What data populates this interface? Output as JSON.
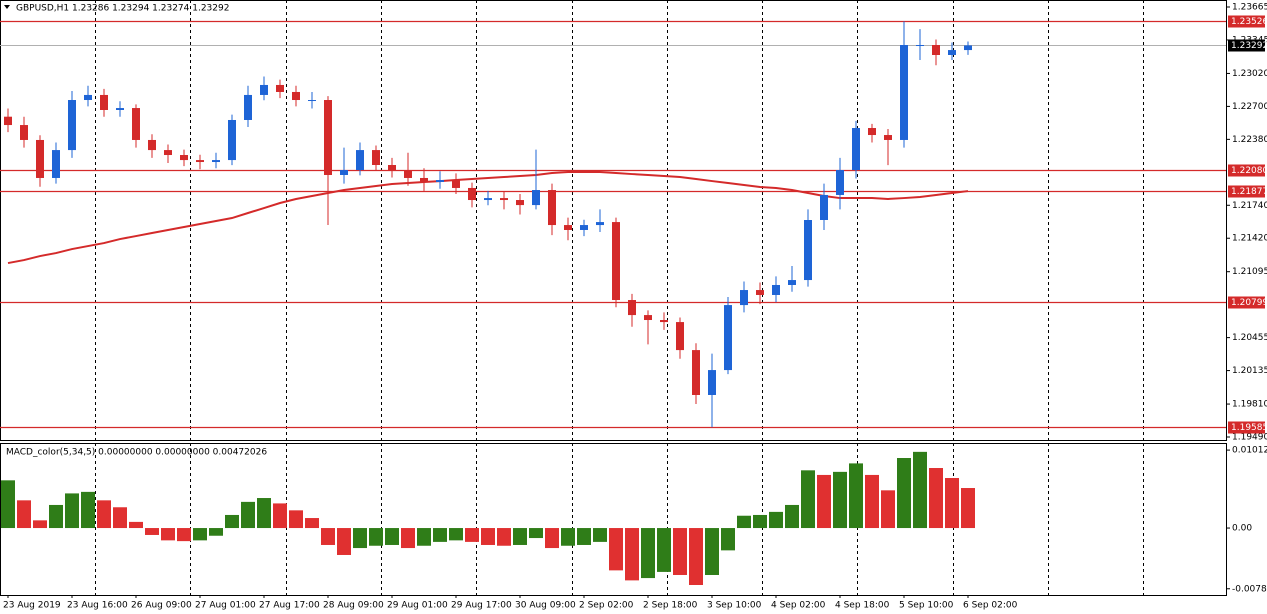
{
  "chart_data": {
    "type": "candlestick",
    "symbol": "GBPUSD,H1",
    "quote": "1.23286 1.23294 1.23274 1.23292",
    "categories": [
      "23 Aug 2019",
      null,
      null,
      null,
      "23 Aug 16:00",
      null,
      null,
      null,
      "26 Aug 09:00",
      null,
      null,
      null,
      "27 Aug 01:00",
      null,
      null,
      null,
      "27 Aug 17:00",
      null,
      null,
      null,
      "28 Aug 09:00",
      null,
      null,
      null,
      "29 Aug 01:00",
      null,
      null,
      null,
      "29 Aug 17:00",
      null,
      null,
      null,
      "30 Aug 09:00",
      null,
      null,
      null,
      "2 Sep 02:00",
      null,
      null,
      null,
      "2 Sep 18:00",
      null,
      null,
      null,
      "3 Sep 10:00",
      null,
      null,
      null,
      "4 Sep 02:00",
      null,
      null,
      null,
      "4 Sep 18:00",
      null,
      null,
      null,
      "5 Sep 10:00",
      null,
      null,
      null,
      "6 Sep 02:00"
    ],
    "open": [
      1.226,
      1.22519,
      1.22374,
      1.22005,
      1.22276,
      1.22762,
      1.22811,
      1.22665,
      1.22684,
      1.22374,
      1.22276,
      1.22228,
      1.22179,
      1.2216,
      1.22179,
      1.22568,
      1.22811,
      1.22908,
      1.2284,
      1.22762,
      1.22762,
      1.22034,
      1.22082,
      1.22276,
      1.22131,
      1.22082,
      1.22005,
      1.21966,
      1.21985,
      1.21908,
      1.21791,
      1.2181,
      1.21791,
      1.21742,
      1.21888,
      1.21548,
      1.215,
      1.21548,
      1.21577,
      1.2082,
      1.20674,
      1.20626,
      1.20606,
      1.20334,
      1.19898,
      1.2014,
      1.20771,
      1.20917,
      1.20869,
      1.20966,
      1.21014,
      1.21597,
      1.2184,
      1.22082,
      1.2249,
      1.22422,
      1.22374,
      1.23296,
      1.23296,
      1.23199,
      1.23247
    ],
    "high": [
      1.2268,
      1.226,
      1.2242,
      1.2235,
      1.2285,
      1.229,
      1.2287,
      1.2275,
      1.2272,
      1.2243,
      1.2233,
      1.2228,
      1.2223,
      1.2225,
      1.2262,
      1.229,
      1.2299,
      1.2296,
      1.229,
      1.2284,
      1.228,
      1.223,
      1.2235,
      1.2232,
      1.222,
      1.2225,
      1.221,
      1.2207,
      1.2205,
      1.2196,
      1.2188,
      1.2187,
      1.2185,
      1.2228,
      1.2195,
      1.2162,
      1.216,
      1.217,
      1.2162,
      1.2088,
      1.2072,
      1.207,
      1.2065,
      1.204,
      1.203,
      1.2085,
      1.21,
      1.2099,
      1.2105,
      1.2115,
      1.217,
      1.2195,
      1.222,
      1.2256,
      1.2253,
      1.2248,
      1.23526,
      1.2345,
      1.2335,
      1.2332,
      1.2333
    ],
    "low": [
      1.2245,
      1.223,
      1.2192,
      1.2195,
      1.222,
      1.227,
      1.226,
      1.226,
      1.223,
      1.222,
      1.2215,
      1.2212,
      1.2209,
      1.221,
      1.2213,
      1.225,
      1.2276,
      1.2278,
      1.227,
      1.2268,
      1.21548,
      1.2195,
      1.2203,
      1.2208,
      1.2201,
      1.2193,
      1.2188,
      1.219,
      1.2185,
      1.2172,
      1.2174,
      1.217,
      1.2165,
      1.217,
      1.2145,
      1.214,
      1.2144,
      1.2148,
      1.2075,
      1.2056,
      1.2039,
      1.2053,
      1.2025,
      1.1981,
      1.19585,
      1.201,
      1.207,
      1.2078,
      1.208,
      1.209,
      1.2095,
      1.215,
      1.217,
      1.22,
      1.2235,
      1.2213,
      1.223,
      1.2315,
      1.231,
      1.2315,
      1.232
    ],
    "close": [
      1.22519,
      1.22374,
      1.22005,
      1.22276,
      1.22762,
      1.22811,
      1.22665,
      1.22684,
      1.22374,
      1.22276,
      1.22228,
      1.22179,
      1.2216,
      1.22179,
      1.22568,
      1.22811,
      1.22908,
      1.2284,
      1.22762,
      1.22762,
      1.22034,
      1.22082,
      1.22276,
      1.22131,
      1.22082,
      1.22005,
      1.21966,
      1.21985,
      1.21908,
      1.21791,
      1.2181,
      1.21791,
      1.21742,
      1.21888,
      1.21548,
      1.215,
      1.21548,
      1.21577,
      1.2082,
      1.20674,
      1.20626,
      1.20606,
      1.20334,
      1.19898,
      1.2014,
      1.20771,
      1.20917,
      1.20869,
      1.20966,
      1.21014,
      1.21597,
      1.2184,
      1.22082,
      1.2249,
      1.22422,
      1.22374,
      1.23296,
      1.23296,
      1.23199,
      1.23247,
      1.23292
    ],
    "up_color": "#1e64d6",
    "down_color": "#d42a2a",
    "ma": {
      "color": "#d42a2a",
      "values": [
        1.21179,
        1.21208,
        1.21247,
        1.21276,
        1.21315,
        1.21344,
        1.21373,
        1.21412,
        1.21441,
        1.21471,
        1.215,
        1.21529,
        1.21558,
        1.21587,
        1.21616,
        1.21665,
        1.21713,
        1.21762,
        1.21801,
        1.2183,
        1.21859,
        1.21888,
        1.21908,
        1.21927,
        1.21946,
        1.21956,
        1.21966,
        1.21975,
        1.21985,
        1.21995,
        1.22005,
        1.22014,
        1.22024,
        1.22034,
        1.22053,
        1.22063,
        1.22063,
        1.22063,
        1.22053,
        1.22043,
        1.22034,
        1.22024,
        1.22014,
        1.21995,
        1.21975,
        1.21956,
        1.21937,
        1.21917,
        1.21908,
        1.21888,
        1.21859,
        1.2183,
        1.2181,
        1.2181,
        1.2181,
        1.21801,
        1.2181,
        1.2182,
        1.2184,
        1.21859,
        1.21878
      ]
    },
    "levels": [
      1.23526,
      {
        "value": 1.2208,
        "label": "1.22080"
      },
      1.21877,
      1.20799,
      1.19585
    ],
    "level_color": "#d42a2a",
    "bid": 1.23292,
    "ylim": [
      1.19461,
      1.23733
    ],
    "yticks": [
      {
        "value": 1.23665,
        "label": "1.23665"
      },
      {
        "value": 1.23345,
        "label": "1.23345"
      },
      {
        "value": 1.2302,
        "label": "1.23020"
      },
      {
        "value": 1.227,
        "label": "1.22700"
      },
      {
        "value": 1.2238,
        "label": "1.22380"
      },
      {
        "value": 1.2174,
        "label": "1.21740"
      },
      {
        "value": 1.2142,
        "label": "1.21420"
      },
      {
        "value": 1.21095,
        "label": "1.21095"
      },
      {
        "value": 1.20455,
        "label": "1.20455"
      },
      {
        "value": 1.20135,
        "label": "1.20135"
      },
      {
        "value": 1.1981,
        "label": "1.19810"
      },
      {
        "value": 1.1949,
        "label": "1.19490"
      }
    ],
    "macd": {
      "title": "MACD_color(5,34,5) 0.00000000 0.00000000 0.00472026",
      "up_color": "#2f7d18",
      "down_color": "#e03030",
      "values": [
        0.0062,
        0.0036,
        0.001,
        0.003,
        0.0045,
        0.0047,
        0.0036,
        0.0027,
        0.0008,
        -0.0009,
        -0.0016,
        -0.0017,
        -0.0016,
        -0.001,
        0.0017,
        0.0034,
        0.0039,
        0.0032,
        0.0023,
        0.0013,
        -0.0022,
        -0.0035,
        -0.0026,
        -0.0023,
        -0.0022,
        -0.0026,
        -0.0023,
        -0.0018,
        -0.0016,
        -0.0018,
        -0.0022,
        -0.0023,
        -0.0022,
        -0.0013,
        -0.0026,
        -0.0023,
        -0.0022,
        -0.0018,
        -0.0055,
        -0.0068,
        -0.0065,
        -0.0057,
        -0.0061,
        -0.0074,
        -0.0061,
        -0.0029,
        0.0016,
        0.0017,
        0.0021,
        0.003,
        0.0075,
        0.0069,
        0.0073,
        0.0084,
        0.0069,
        0.0049,
        0.0091,
        0.0099,
        0.0078,
        0.0065,
        0.0052
      ],
      "ylim": [
        -0.0087,
        0.01105
      ],
      "yticks": [
        0.010128,
        {
          "value": 0,
          "label": "0.00"
        },
        -0.00789
      ]
    }
  }
}
